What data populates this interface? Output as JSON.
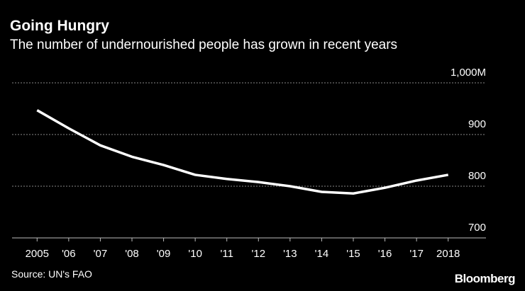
{
  "chart_data": {
    "type": "line",
    "title": "Going Hungry",
    "subtitle": "The number of undernourished people has grown in recent years",
    "source": "Source: UN's FAO",
    "brand": "Bloomberg",
    "categories": [
      "2005",
      "'06",
      "'07",
      "'08",
      "'09",
      "'10",
      "'11",
      "'12",
      "'13",
      "'14",
      "'15",
      "'16",
      "'17",
      "2018"
    ],
    "series": [
      {
        "name": "Undernourished people",
        "color": "#ffffff",
        "values": [
          947,
          912,
          879,
          857,
          841,
          822,
          814,
          808,
          800,
          789,
          786,
          797,
          811,
          822
        ]
      }
    ],
    "ylim": [
      700,
      1000
    ],
    "yticks": [
      700,
      800,
      900,
      {
        "value": 1000,
        "label": "1,000M"
      }
    ],
    "grid": true
  }
}
